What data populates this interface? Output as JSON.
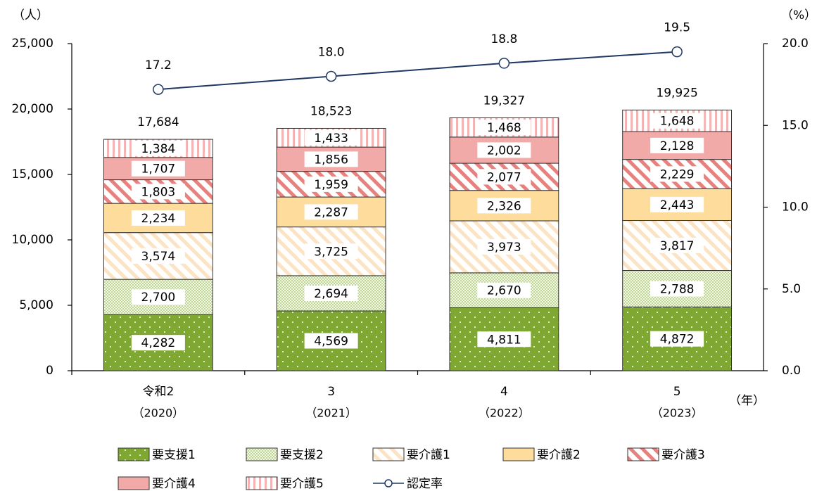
{
  "chart_data": {
    "type": "stacked-bar-line",
    "y_unit": "（人）",
    "y2_unit": "（%）",
    "x_unit": "（年）",
    "categories": [
      "令和2",
      "3",
      "4",
      "5"
    ],
    "category_years": [
      "（2020）",
      "（2021）",
      "（2022）",
      "（2023）"
    ],
    "ylim": [
      0,
      25000
    ],
    "yticks": [
      0,
      {
        "value": 5000,
        "label": "5,000"
      },
      {
        "value": 10000,
        "label": "10,000"
      },
      {
        "value": 15000,
        "label": "15,000"
      },
      {
        "value": 20000,
        "label": "20,000"
      },
      {
        "value": 25000,
        "label": "25,000"
      }
    ],
    "y2lim": [
      0,
      20
    ],
    "y2ticks": [
      {
        "value": 0,
        "label": "0.0"
      },
      {
        "value": 5,
        "label": "5.0"
      },
      {
        "value": 10,
        "label": "10.0"
      },
      {
        "value": 15,
        "label": "15.0"
      },
      {
        "value": 20,
        "label": "20.0"
      }
    ],
    "series": [
      {
        "name": "要支援1",
        "color": "#7fa832",
        "pattern": "dots",
        "values": [
          4282,
          4569,
          4811,
          4872
        ],
        "value_labels": [
          "4,282",
          "4,569",
          "4,811",
          "4,872"
        ]
      },
      {
        "name": "要支援2",
        "color": "#9cbf5a",
        "pattern": "fine-dots",
        "values": [
          2700,
          2694,
          2670,
          2788
        ],
        "value_labels": [
          "2,700",
          "2,694",
          "2,670",
          "2,788"
        ]
      },
      {
        "name": "要介護1",
        "color": "#fbe3c4",
        "pattern": "diagonal",
        "values": [
          3574,
          3725,
          3973,
          3817
        ],
        "value_labels": [
          "3,574",
          "3,725",
          "3,973",
          "3,817"
        ]
      },
      {
        "name": "要介護2",
        "color": "#fddc9c",
        "pattern": "solid",
        "values": [
          2234,
          2287,
          2326,
          2443
        ],
        "value_labels": [
          "2,234",
          "2,287",
          "2,326",
          "2,443"
        ]
      },
      {
        "name": "要介護3",
        "color": "#e8807d",
        "pattern": "diagonal",
        "values": [
          1803,
          1959,
          2077,
          2229
        ],
        "value_labels": [
          "1,803",
          "1,959",
          "2,077",
          "2,229"
        ]
      },
      {
        "name": "要介護4",
        "color": "#f2aaa8",
        "pattern": "solid",
        "values": [
          1707,
          1856,
          2002,
          2128
        ],
        "value_labels": [
          "1,707",
          "1,856",
          "2,002",
          "2,128"
        ]
      },
      {
        "name": "要介護5",
        "color": "#f2b4b4",
        "pattern": "vertical",
        "values": [
          1384,
          1433,
          1468,
          1648
        ],
        "value_labels": [
          "1,384",
          "1,433",
          "1,468",
          "1,648"
        ]
      },
      {
        "name": "認定率",
        "color": "#1f3864",
        "type": "line",
        "axis": "y2",
        "values": [
          17.2,
          18.0,
          18.8,
          19.5
        ],
        "value_labels": [
          "17.2",
          "18.0",
          "18.8",
          "19.5"
        ]
      }
    ],
    "totals": [
      17684,
      18523,
      19327,
      19925
    ],
    "total_labels": [
      "17,684",
      "18,523",
      "19,327",
      "19,925"
    ]
  }
}
